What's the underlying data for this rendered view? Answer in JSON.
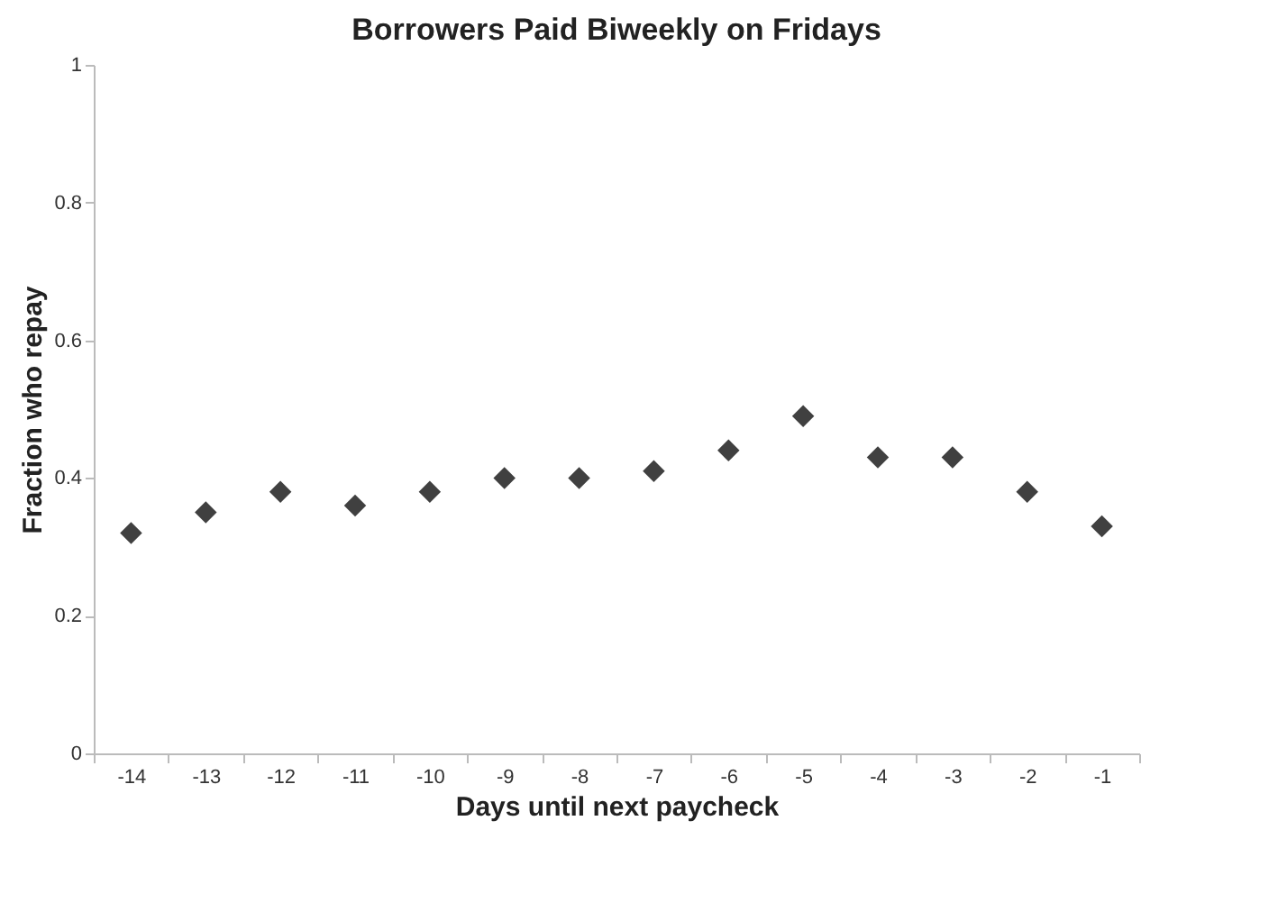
{
  "chart_data": {
    "type": "scatter",
    "title": "Borrowers Paid Biweekly on Fridays",
    "xlabel": "Days until next paycheck",
    "ylabel": "Fraction who repay",
    "categories": [
      "-14",
      "-13",
      "-12",
      "-11",
      "-10",
      "-9",
      "-8",
      "-7",
      "-6",
      "-5",
      "-4",
      "-3",
      "-2",
      "-1"
    ],
    "series": [
      {
        "color": "#404040",
        "values": [
          0.32,
          0.35,
          0.38,
          0.36,
          0.38,
          0.4,
          0.4,
          0.41,
          0.44,
          0.49,
          0.43,
          0.43,
          0.38,
          0.33
        ]
      }
    ],
    "ylim": [
      0,
      1
    ],
    "yticks": [
      0,
      0.2,
      0.4,
      0.6,
      0.8,
      1
    ],
    "grid": false,
    "legend": false,
    "marker": "diamond"
  }
}
